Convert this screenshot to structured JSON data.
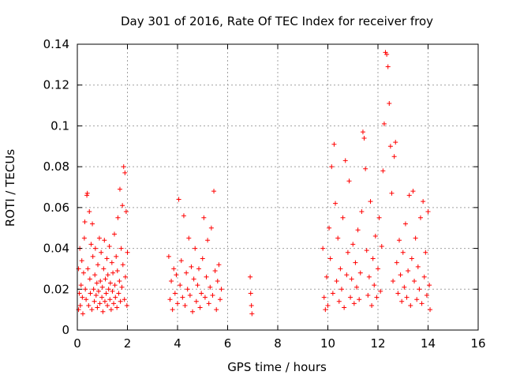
{
  "chart_data": {
    "type": "scatter",
    "title": "Day 301 of 2016, Rate Of TEC Index for receiver froy",
    "xlabel": "GPS time / hours",
    "ylabel": "ROTI / TECUs",
    "xlim": [
      0,
      16
    ],
    "ylim": [
      0,
      0.14
    ],
    "x_ticks": [
      0,
      2,
      4,
      6,
      8,
      10,
      12,
      14,
      16
    ],
    "x_tick_labels": [
      "0",
      "2",
      "4",
      "6",
      "8",
      "10",
      "12",
      "14",
      "16"
    ],
    "y_ticks": [
      0,
      0.02,
      0.04,
      0.06,
      0.08,
      0.1,
      0.12,
      0.14
    ],
    "y_tick_labels": [
      "0",
      "0.02",
      "0.04",
      "0.06",
      "0.08",
      "0.1",
      "0.12",
      "0.14"
    ],
    "grid": true,
    "marker": "+",
    "color": "#ff0000",
    "series": [
      {
        "name": "ROTI",
        "points": [
          [
            0.05,
            0.01
          ],
          [
            0.05,
            0.03
          ],
          [
            0.08,
            0.018
          ],
          [
            0.1,
            0.04
          ],
          [
            0.12,
            0.012
          ],
          [
            0.15,
            0.022
          ],
          [
            0.18,
            0.034
          ],
          [
            0.2,
            0.016
          ],
          [
            0.22,
            0.008
          ],
          [
            0.25,
            0.028
          ],
          [
            0.28,
            0.045
          ],
          [
            0.3,
            0.053
          ],
          [
            0.32,
            0.02
          ],
          [
            0.35,
            0.015
          ],
          [
            0.38,
            0.066
          ],
          [
            0.4,
            0.067
          ],
          [
            0.42,
            0.03
          ],
          [
            0.45,
            0.012
          ],
          [
            0.48,
            0.058
          ],
          [
            0.5,
            0.025
          ],
          [
            0.52,
            0.018
          ],
          [
            0.55,
            0.042
          ],
          [
            0.58,
            0.01
          ],
          [
            0.6,
            0.052
          ],
          [
            0.62,
            0.036
          ],
          [
            0.65,
            0.02
          ],
          [
            0.68,
            0.014
          ],
          [
            0.7,
            0.027
          ],
          [
            0.72,
            0.04
          ],
          [
            0.75,
            0.017
          ],
          [
            0.78,
            0.023
          ],
          [
            0.8,
            0.011
          ],
          [
            0.82,
            0.032
          ],
          [
            0.85,
            0.019
          ],
          [
            0.88,
            0.045
          ],
          [
            0.9,
            0.013
          ],
          [
            0.92,
            0.024
          ],
          [
            0.95,
            0.038
          ],
          [
            0.98,
            0.016
          ],
          [
            1.0,
            0.021
          ],
          [
            1.02,
            0.009
          ],
          [
            1.05,
            0.03
          ],
          [
            1.08,
            0.044
          ],
          [
            1.1,
            0.014
          ],
          [
            1.12,
            0.025
          ],
          [
            1.15,
            0.018
          ],
          [
            1.18,
            0.035
          ],
          [
            1.2,
            0.012
          ],
          [
            1.22,
            0.027
          ],
          [
            1.25,
            0.02
          ],
          [
            1.28,
            0.041
          ],
          [
            1.3,
            0.015
          ],
          [
            1.32,
            0.023
          ],
          [
            1.35,
            0.01
          ],
          [
            1.38,
            0.033
          ],
          [
            1.4,
            0.019
          ],
          [
            1.42,
            0.028
          ],
          [
            1.45,
            0.013
          ],
          [
            1.48,
            0.047
          ],
          [
            1.5,
            0.022
          ],
          [
            1.52,
            0.016
          ],
          [
            1.55,
            0.036
          ],
          [
            1.58,
            0.011
          ],
          [
            1.6,
            0.029
          ],
          [
            1.62,
            0.055
          ],
          [
            1.65,
            0.018
          ],
          [
            1.68,
            0.024
          ],
          [
            1.7,
            0.069
          ],
          [
            1.72,
            0.014
          ],
          [
            1.75,
            0.04
          ],
          [
            1.78,
            0.021
          ],
          [
            1.8,
            0.061
          ],
          [
            1.82,
            0.032
          ],
          [
            1.85,
            0.08
          ],
          [
            1.88,
            0.015
          ],
          [
            1.9,
            0.077
          ],
          [
            1.92,
            0.026
          ],
          [
            1.95,
            0.058
          ],
          [
            1.98,
            0.012
          ],
          [
            2.0,
            0.038
          ],
          [
            3.65,
            0.036
          ],
          [
            3.7,
            0.015
          ],
          [
            3.75,
            0.024
          ],
          [
            3.8,
            0.01
          ],
          [
            3.85,
            0.03
          ],
          [
            3.9,
            0.018
          ],
          [
            3.95,
            0.027
          ],
          [
            4.0,
            0.013
          ],
          [
            4.05,
            0.064
          ],
          [
            4.1,
            0.022
          ],
          [
            4.15,
            0.034
          ],
          [
            4.2,
            0.016
          ],
          [
            4.25,
            0.056
          ],
          [
            4.3,
            0.012
          ],
          [
            4.35,
            0.028
          ],
          [
            4.4,
            0.02
          ],
          [
            4.45,
            0.045
          ],
          [
            4.5,
            0.017
          ],
          [
            4.55,
            0.031
          ],
          [
            4.6,
            0.009
          ],
          [
            4.65,
            0.025
          ],
          [
            4.7,
            0.04
          ],
          [
            4.75,
            0.014
          ],
          [
            4.8,
            0.022
          ],
          [
            4.85,
            0.03
          ],
          [
            4.9,
            0.011
          ],
          [
            4.95,
            0.018
          ],
          [
            5.0,
            0.035
          ],
          [
            5.05,
            0.055
          ],
          [
            5.1,
            0.016
          ],
          [
            5.15,
            0.026
          ],
          [
            5.2,
            0.044
          ],
          [
            5.25,
            0.013
          ],
          [
            5.3,
            0.021
          ],
          [
            5.35,
            0.05
          ],
          [
            5.4,
            0.017
          ],
          [
            5.45,
            0.068
          ],
          [
            5.5,
            0.029
          ],
          [
            5.55,
            0.01
          ],
          [
            5.6,
            0.024
          ],
          [
            5.65,
            0.032
          ],
          [
            5.7,
            0.015
          ],
          [
            5.75,
            0.02
          ],
          [
            6.9,
            0.026
          ],
          [
            6.92,
            0.018
          ],
          [
            6.95,
            0.012
          ],
          [
            6.97,
            0.008
          ],
          [
            9.8,
            0.04
          ],
          [
            9.85,
            0.016
          ],
          [
            9.9,
            0.01
          ],
          [
            9.95,
            0.026
          ],
          [
            10.0,
            0.012
          ],
          [
            10.05,
            0.05
          ],
          [
            10.1,
            0.035
          ],
          [
            10.15,
            0.08
          ],
          [
            10.2,
            0.018
          ],
          [
            10.25,
            0.091
          ],
          [
            10.3,
            0.062
          ],
          [
            10.35,
            0.024
          ],
          [
            10.4,
            0.045
          ],
          [
            10.45,
            0.014
          ],
          [
            10.5,
            0.03
          ],
          [
            10.55,
            0.02
          ],
          [
            10.6,
            0.055
          ],
          [
            10.65,
            0.011
          ],
          [
            10.7,
            0.083
          ],
          [
            10.75,
            0.027
          ],
          [
            10.8,
            0.038
          ],
          [
            10.85,
            0.073
          ],
          [
            10.9,
            0.016
          ],
          [
            10.95,
            0.025
          ],
          [
            11.0,
            0.042
          ],
          [
            11.05,
            0.013
          ],
          [
            11.1,
            0.033
          ],
          [
            11.15,
            0.021
          ],
          [
            11.2,
            0.049
          ],
          [
            11.25,
            0.015
          ],
          [
            11.3,
            0.028
          ],
          [
            11.35,
            0.058
          ],
          [
            11.4,
            0.097
          ],
          [
            11.45,
            0.094
          ],
          [
            11.5,
            0.079
          ],
          [
            11.55,
            0.039
          ],
          [
            11.6,
            0.017
          ],
          [
            11.65,
            0.026
          ],
          [
            11.7,
            0.063
          ],
          [
            11.75,
            0.012
          ],
          [
            11.8,
            0.035
          ],
          [
            11.85,
            0.022
          ],
          [
            11.9,
            0.046
          ],
          [
            11.95,
            0.016
          ],
          [
            12.0,
            0.03
          ],
          [
            12.05,
            0.055
          ],
          [
            12.1,
            0.019
          ],
          [
            12.15,
            0.041
          ],
          [
            12.2,
            0.078
          ],
          [
            12.25,
            0.101
          ],
          [
            12.3,
            0.136
          ],
          [
            12.35,
            0.135
          ],
          [
            12.4,
            0.129
          ],
          [
            12.45,
            0.111
          ],
          [
            12.5,
            0.09
          ],
          [
            12.55,
            0.067
          ],
          [
            12.6,
            0.024
          ],
          [
            12.65,
            0.085
          ],
          [
            12.7,
            0.092
          ],
          [
            12.75,
            0.033
          ],
          [
            12.8,
            0.018
          ],
          [
            12.85,
            0.044
          ],
          [
            12.9,
            0.027
          ],
          [
            12.95,
            0.014
          ],
          [
            13.0,
            0.038
          ],
          [
            13.05,
            0.021
          ],
          [
            13.1,
            0.052
          ],
          [
            13.15,
            0.016
          ],
          [
            13.2,
            0.029
          ],
          [
            13.25,
            0.066
          ],
          [
            13.3,
            0.012
          ],
          [
            13.35,
            0.035
          ],
          [
            13.4,
            0.068
          ],
          [
            13.45,
            0.024
          ],
          [
            13.5,
            0.045
          ],
          [
            13.55,
            0.015
          ],
          [
            13.6,
            0.031
          ],
          [
            13.65,
            0.02
          ],
          [
            13.7,
            0.055
          ],
          [
            13.75,
            0.013
          ],
          [
            13.8,
            0.063
          ],
          [
            13.85,
            0.026
          ],
          [
            13.9,
            0.038
          ],
          [
            13.95,
            0.017
          ],
          [
            14.0,
            0.058
          ],
          [
            14.05,
            0.022
          ],
          [
            14.08,
            0.01
          ]
        ]
      }
    ]
  }
}
